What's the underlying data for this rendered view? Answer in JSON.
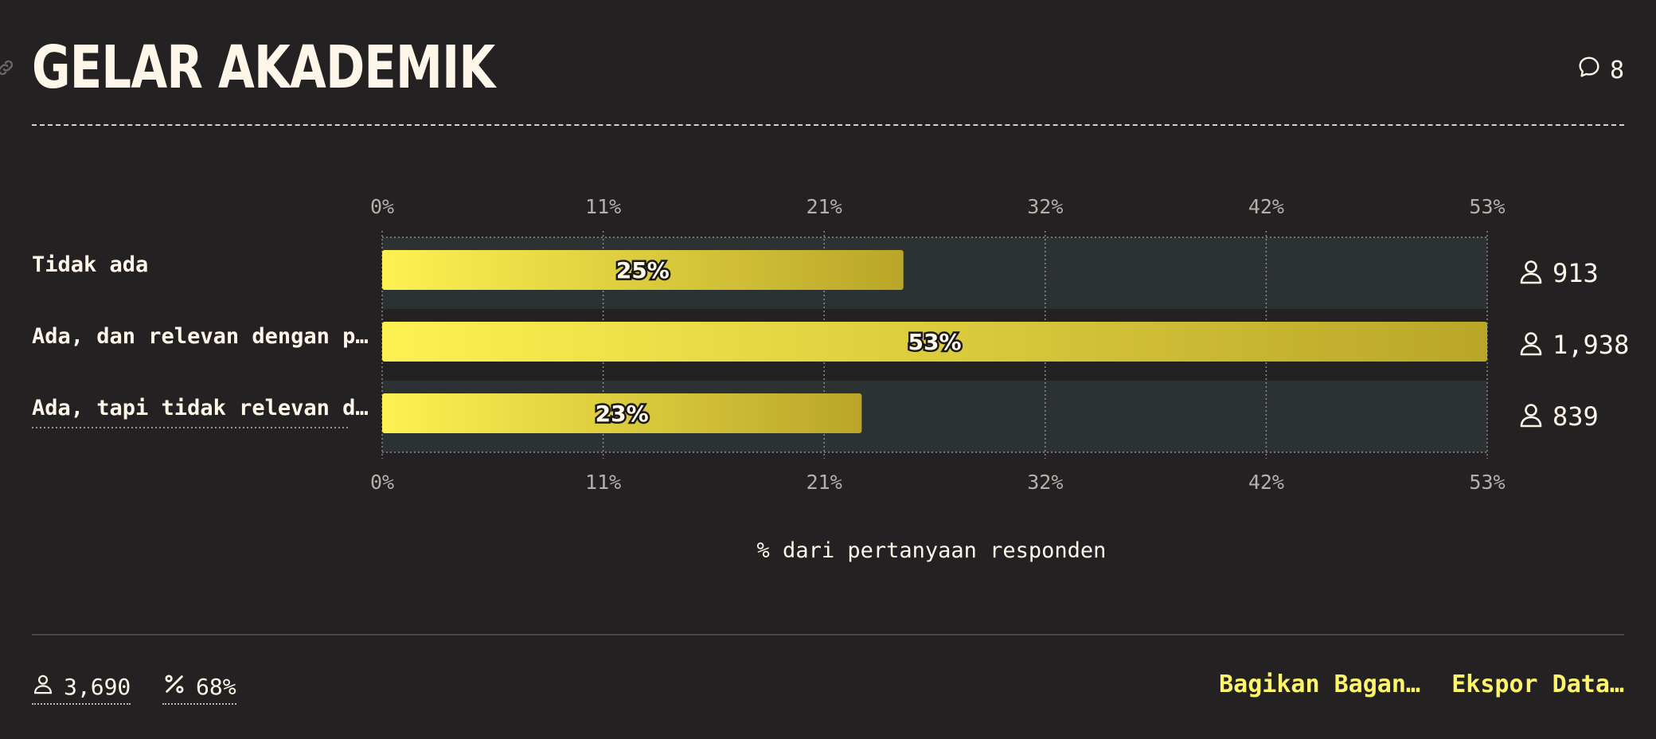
{
  "header": {
    "title": "GELAR AKADEMIK",
    "comment_count": "8"
  },
  "chart_data": {
    "type": "bar",
    "orientation": "horizontal",
    "categories": [
      "Tidak ada",
      "Ada, dan relevan dengan p…",
      "Ada, tapi tidak relevan d…"
    ],
    "values": [
      25,
      53,
      23
    ],
    "value_labels": [
      "25%",
      "53%",
      "23%"
    ],
    "respondent_counts": [
      "913",
      "1,938",
      "839"
    ],
    "xticks": [
      "0%",
      "11%",
      "21%",
      "32%",
      "42%",
      "53%"
    ],
    "xlim": [
      0,
      53
    ],
    "xlabel": "% dari pertanyaan responden",
    "grid": true,
    "colors": {
      "bar_start": "#fdf152",
      "bar_end": "#b9a628",
      "track": "#2c3133",
      "grid": "#8a8888"
    }
  },
  "footer": {
    "total_respondents": "3,690",
    "response_rate": "68%",
    "share_label": "Bagikan Bagan…",
    "export_label": "Ekspor Data…"
  },
  "icons": {
    "link": "link-icon",
    "comment": "comment-icon",
    "person": "person-icon",
    "percent": "percent-icon"
  }
}
